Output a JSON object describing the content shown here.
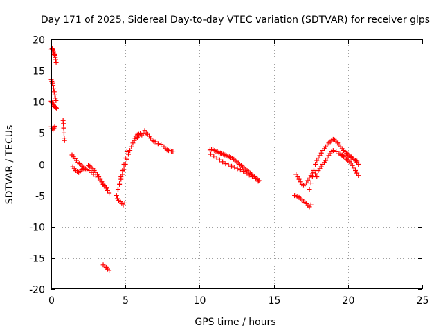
{
  "chart_data": {
    "type": "scatter",
    "title": "Day 171 of 2025, Sidereal Day-to-day VTEC variation (SDTVAR) for receiver glps",
    "xlabel": "GPS time / hours",
    "ylabel": "SDTVAR / TECUs",
    "xlim": [
      0,
      25
    ],
    "ylim": [
      -20,
      20
    ],
    "xticks": [
      "0",
      "5",
      "10",
      "15",
      "20",
      "25"
    ],
    "yticks": [
      "20",
      "15",
      "10",
      "5",
      "0",
      "-5",
      "-10",
      "-15",
      "-20"
    ],
    "grid": true,
    "marker": "plus",
    "color": "#ff0000",
    "series": [
      {
        "name": "glps",
        "x": [
          0.0,
          0.03,
          0.06,
          0.09,
          0.12,
          0.15,
          0.18,
          0.21,
          0.24,
          0.27,
          0.3,
          0.33,
          0.0,
          0.04,
          0.08,
          0.12,
          0.16,
          0.2,
          0.24,
          0.28,
          0.32,
          0.0,
          0.05,
          0.1,
          0.15,
          0.2,
          0.25,
          0.3,
          0.35,
          0.0,
          0.06,
          0.12,
          0.18,
          0.24,
          0.8,
          0.82,
          0.84,
          0.86,
          0.88,
          0.9,
          1.4,
          1.5,
          1.6,
          1.7,
          1.8,
          1.9,
          2.0,
          2.1,
          2.2,
          2.3,
          2.4,
          1.45,
          1.55,
          1.65,
          1.75,
          1.85,
          1.95,
          2.05,
          2.15,
          2.5,
          2.6,
          2.7,
          2.8,
          2.9,
          3.0,
          3.1,
          3.2,
          3.3,
          3.4,
          3.5,
          3.6,
          3.7,
          3.8,
          3.9,
          2.55,
          2.7,
          2.85,
          3.0,
          3.15,
          3.3,
          3.45,
          3.6,
          3.75,
          3.5,
          3.6,
          3.7,
          3.8,
          3.9,
          4.4,
          4.5,
          4.6,
          4.7,
          4.8,
          4.9,
          5.0,
          5.1,
          4.45,
          4.55,
          4.65,
          4.75,
          4.85,
          4.95,
          4.5,
          4.6,
          4.7,
          4.8,
          4.9,
          5.0,
          5.1,
          5.2,
          5.3,
          5.4,
          5.5,
          5.6,
          5.7,
          5.8,
          5.9,
          5.6,
          5.7,
          5.8,
          5.9,
          6.0,
          6.1,
          6.2,
          6.3,
          6.4,
          6.5,
          6.6,
          6.7,
          6.8,
          6.9,
          7.0,
          7.2,
          7.4,
          7.6,
          7.7,
          7.8,
          7.9,
          8.0,
          8.1,
          8.2,
          10.7,
          10.8,
          10.9,
          11.0,
          11.1,
          11.2,
          11.3,
          11.4,
          11.5,
          11.6,
          11.7,
          11.8,
          11.9,
          12.0,
          12.1,
          12.2,
          12.3,
          12.4,
          12.5,
          12.6,
          12.7,
          12.8,
          12.9,
          13.0,
          13.1,
          13.2,
          13.3,
          13.4,
          13.5,
          13.6,
          13.7,
          13.8,
          13.9,
          14.0,
          10.75,
          10.95,
          11.15,
          11.35,
          11.55,
          11.75,
          11.95,
          12.15,
          12.35,
          12.55,
          12.75,
          12.95,
          13.15,
          13.35,
          13.55,
          13.75,
          13.95,
          16.4,
          16.5,
          16.6,
          16.7,
          16.8,
          16.9,
          17.0,
          17.1,
          17.2,
          17.3,
          17.4,
          17.5,
          16.5,
          16.6,
          16.7,
          16.8,
          16.9,
          17.0,
          17.1,
          17.2,
          17.3,
          17.4,
          17.5,
          17.6,
          17.7,
          17.8,
          17.9,
          17.4,
          17.5,
          17.6,
          17.7,
          17.8,
          17.9,
          18.0,
          18.1,
          18.2,
          18.3,
          18.4,
          18.5,
          18.6,
          18.7,
          18.8,
          18.9,
          19.0,
          19.1,
          19.2,
          19.3,
          19.4,
          19.5,
          19.6,
          19.7,
          19.8,
          19.9,
          20.0,
          20.1,
          20.2,
          20.3,
          20.4,
          20.5,
          20.6,
          20.7,
          18.0,
          18.1,
          18.2,
          18.3,
          18.4,
          18.5,
          18.6,
          18.7,
          18.8,
          18.9,
          19.0,
          19.2,
          19.4,
          19.6,
          19.8,
          20.0,
          20.2,
          20.4,
          20.6,
          19.5,
          19.6,
          19.7,
          19.8,
          19.9,
          20.0,
          20.1,
          20.2,
          20.3,
          20.4,
          20.5,
          20.6,
          20.7
        ],
        "y": [
          18.3,
          18.6,
          18.5,
          18.4,
          18.2,
          18.0,
          17.8,
          17.6,
          17.4,
          17.1,
          16.8,
          16.3,
          13.6,
          13.3,
          13.0,
          12.6,
          12.1,
          11.6,
          11.1,
          10.6,
          10.2,
          10.1,
          9.9,
          9.7,
          9.5,
          9.3,
          9.2,
          9.1,
          9.0,
          6.0,
          5.7,
          5.5,
          5.8,
          6.1,
          7.0,
          6.5,
          5.8,
          5.0,
          4.2,
          3.8,
          1.5,
          1.2,
          0.9,
          0.6,
          0.3,
          0.1,
          -0.1,
          -0.3,
          -0.5,
          -0.7,
          -0.9,
          -0.4,
          -0.7,
          -1.0,
          -1.2,
          -1.3,
          -1.1,
          -0.9,
          -0.7,
          -0.2,
          -0.3,
          -0.5,
          -0.7,
          -1.0,
          -1.3,
          -1.6,
          -2.0,
          -2.4,
          -2.8,
          -3.2,
          -3.5,
          -3.8,
          -4.2,
          -4.6,
          -1.0,
          -1.3,
          -1.6,
          -1.9,
          -2.2,
          -2.6,
          -3.0,
          -3.4,
          -3.8,
          -16.1,
          -16.3,
          -16.5,
          -16.8,
          -17.0,
          -5.0,
          -4.0,
          -3.0,
          -2.0,
          -1.0,
          0.0,
          1.0,
          2.0,
          -5.5,
          -5.8,
          -6.0,
          -6.3,
          -6.5,
          -6.2,
          -4.0,
          -3.2,
          -2.4,
          -1.6,
          -0.8,
          0.0,
          0.8,
          1.6,
          2.2,
          2.8,
          3.4,
          3.8,
          4.1,
          4.3,
          4.5,
          4.2,
          4.5,
          4.7,
          4.8,
          4.9,
          4.7,
          4.9,
          5.4,
          5.0,
          4.8,
          4.5,
          4.2,
          3.8,
          3.7,
          3.6,
          3.3,
          3.2,
          2.8,
          2.5,
          2.3,
          2.2,
          2.2,
          2.1,
          2.1,
          2.3,
          2.4,
          2.3,
          2.2,
          2.1,
          2.0,
          1.9,
          1.8,
          1.7,
          1.6,
          1.5,
          1.4,
          1.3,
          1.2,
          1.1,
          1.0,
          0.8,
          0.6,
          0.4,
          0.2,
          0.0,
          -0.2,
          -0.4,
          -0.6,
          -0.8,
          -1.0,
          -1.2,
          -1.4,
          -1.6,
          -1.8,
          -2.0,
          -2.2,
          -2.4,
          -2.6,
          1.6,
          1.3,
          1.0,
          0.7,
          0.4,
          0.1,
          -0.1,
          -0.3,
          -0.5,
          -0.7,
          -0.9,
          -1.1,
          -1.4,
          -1.7,
          -2.0,
          -2.3,
          -2.7,
          -5.0,
          -5.1,
          -5.2,
          -5.3,
          -5.5,
          -5.7,
          -5.9,
          -6.1,
          -6.3,
          -6.6,
          -6.8,
          -6.5,
          -1.6,
          -2.0,
          -2.4,
          -2.8,
          -3.2,
          -3.4,
          -3.3,
          -3.0,
          -2.6,
          -2.2,
          -1.8,
          -1.5,
          -1.3,
          -1.5,
          -2.0,
          -4.0,
          -3.0,
          -2.0,
          -1.0,
          0.0,
          0.6,
          1.0,
          1.4,
          1.8,
          2.2,
          2.5,
          2.8,
          3.1,
          3.4,
          3.6,
          3.8,
          4.0,
          3.9,
          3.7,
          3.4,
          3.1,
          2.8,
          2.5,
          2.2,
          2.0,
          1.8,
          1.6,
          1.4,
          1.2,
          1.0,
          0.8,
          0.6,
          0.3,
          0.0,
          -1.0,
          -0.7,
          -0.4,
          0.0,
          0.3,
          0.6,
          1.0,
          1.4,
          1.7,
          2.0,
          2.2,
          2.0,
          1.7,
          1.5,
          1.4,
          1.3,
          1.1,
          0.8,
          0.5,
          1.6,
          1.4,
          1.2,
          1.0,
          0.8,
          0.6,
          0.4,
          0.2,
          -0.2,
          -0.6,
          -1.0,
          -1.4,
          -1.8
        ]
      }
    ]
  }
}
